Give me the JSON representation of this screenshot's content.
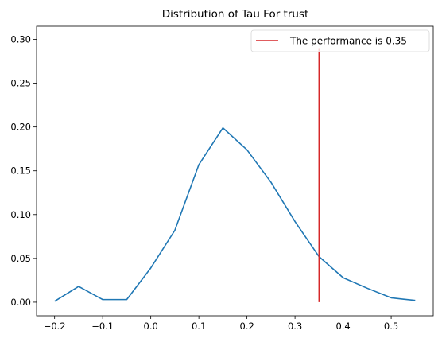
{
  "chart_data": {
    "type": "line",
    "title": "Distribution of Tau For trust",
    "xlabel": "",
    "ylabel": "",
    "xlim": [
      -0.2375,
      0.5875
    ],
    "ylim": [
      -0.0155,
      0.315
    ],
    "x_ticks": [
      -0.2,
      -0.1,
      0.0,
      0.1,
      0.2,
      0.3,
      0.4,
      0.5
    ],
    "x_tick_labels": [
      "−0.2",
      "−0.1",
      "0.0",
      "0.1",
      "0.2",
      "0.3",
      "0.4",
      "0.5"
    ],
    "y_ticks": [
      0.0,
      0.05,
      0.1,
      0.15,
      0.2,
      0.25,
      0.3
    ],
    "y_tick_labels": [
      "0.00",
      "0.05",
      "0.10",
      "0.15",
      "0.20",
      "0.25",
      "0.30"
    ],
    "grid": false,
    "legend_position": "top-right",
    "series": [
      {
        "color": "#1f77b4",
        "x": [
          -0.2,
          -0.15,
          -0.1,
          -0.05,
          0.0,
          0.05,
          0.1,
          0.15,
          0.2,
          0.25,
          0.3,
          0.35,
          0.4,
          0.45,
          0.5,
          0.55
        ],
        "y": [
          0.001,
          0.018,
          0.003,
          0.003,
          0.039,
          0.082,
          0.157,
          0.199,
          0.174,
          0.137,
          0.092,
          0.052,
          0.028,
          0.016,
          0.005,
          0.002
        ]
      }
    ],
    "reference_line": {
      "label": "The performance is 0.35",
      "x": 0.35,
      "y_range": [
        0.0,
        0.29
      ],
      "color": "#d62728"
    }
  }
}
